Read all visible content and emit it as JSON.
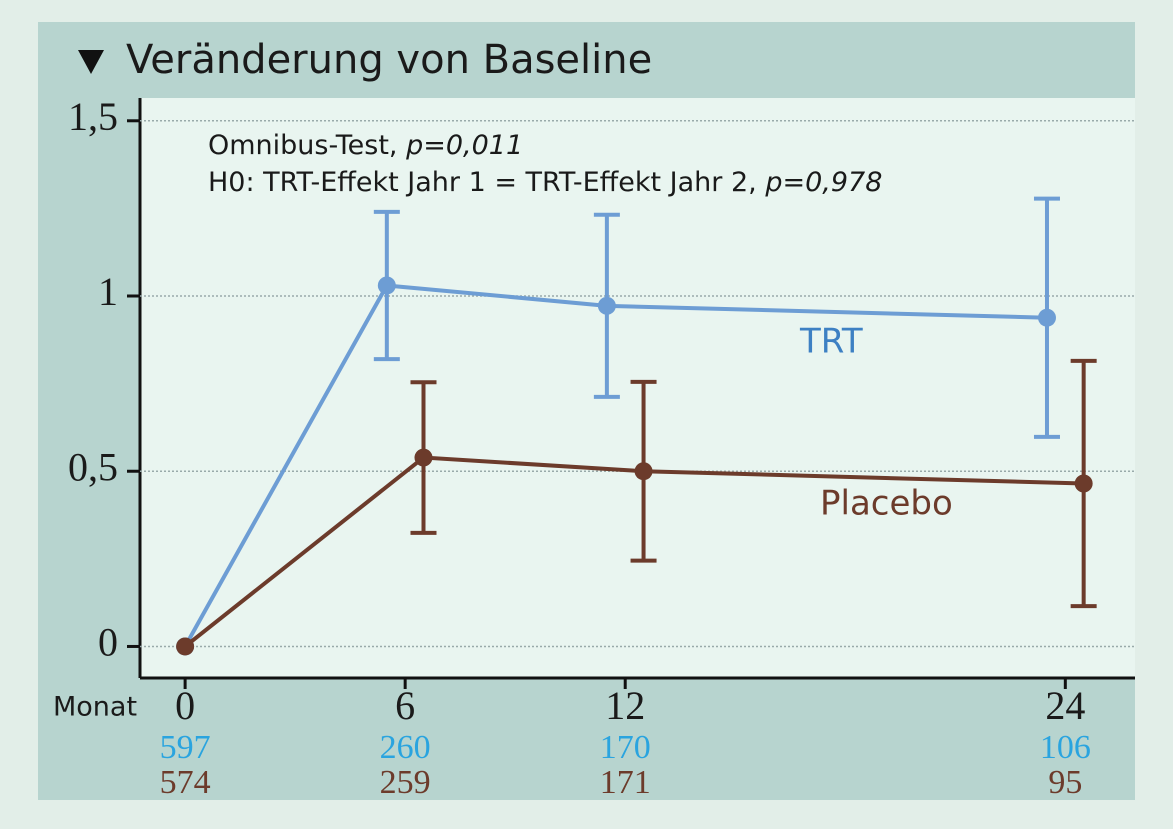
{
  "chart_data": {
    "type": "line",
    "title": "Veränderung von Baseline",
    "annotations": [
      {
        "text": "Omnibus-Test,",
        "p": "p=0,011"
      },
      {
        "text": "H0: TRT-Effekt Jahr 1 = TRT-Effekt Jahr 2,",
        "p": "p=0,978"
      }
    ],
    "xlabel": "Monat",
    "xlim": [
      -1.23,
      25.9
    ],
    "xticks": [
      0,
      6,
      12,
      24
    ],
    "ylim": [
      -0.09,
      1.565
    ],
    "yticks": [
      0,
      {
        "value": 0.5,
        "label": "0,5"
      },
      1,
      {
        "value": 1.5,
        "label": "1,5"
      }
    ],
    "grid": true,
    "series": [
      {
        "name": "TRT",
        "color": "#6d9dd4",
        "label_color": "#3d80c3",
        "n_color": "#2aa4df",
        "x": [
          0,
          5.5,
          11.5,
          23.5
        ],
        "values": [
          0,
          1.03,
          0.972,
          0.938
        ],
        "errors": [
          null,
          0.21,
          0.26,
          0.34
        ],
        "n_at_risk": [
          597,
          260,
          170,
          106
        ]
      },
      {
        "name": "Placebo",
        "color": "#6c3b2b",
        "label_color": "#6c3b2b",
        "n_color": "#6c3b2b",
        "x": [
          0,
          6.5,
          12.5,
          24.5
        ],
        "values": [
          0,
          0.539,
          0.5,
          0.465
        ],
        "errors": [
          null,
          0.215,
          0.255,
          0.35
        ],
        "n_at_risk": [
          574,
          259,
          171,
          95
        ]
      }
    ]
  }
}
